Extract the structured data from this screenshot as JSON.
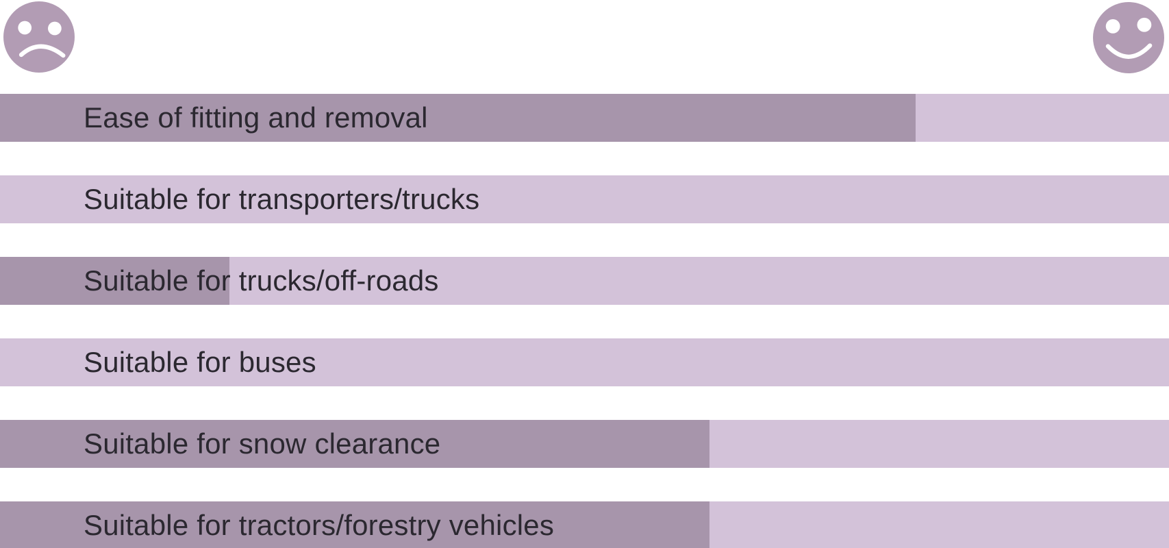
{
  "chart_data": {
    "type": "bar",
    "orientation": "horizontal",
    "title": "",
    "categories": [
      "Ease of fitting and removal",
      "Suitable for transporters/trucks",
      "Suitable for trucks/off-roads",
      "Suitable for buses",
      "Suitable for snow clearance",
      "Suitable for tractors/forestry vehicles"
    ],
    "values": [
      78.3,
      0,
      19.6,
      0,
      60.7,
      60.7
    ],
    "value_unit": "percent of track width (rating from sad to happy)",
    "xlim": [
      0,
      100
    ],
    "grid": false,
    "legend_position": "top corners",
    "scale_icons": {
      "min": "sad-face-icon",
      "max": "happy-face-icon"
    },
    "colors": {
      "fill_dark": "#a795ab",
      "track_light": "#d3c2d9",
      "face": "#b29cb4",
      "label_text": "#2b2830",
      "background": "#ffffff"
    }
  }
}
